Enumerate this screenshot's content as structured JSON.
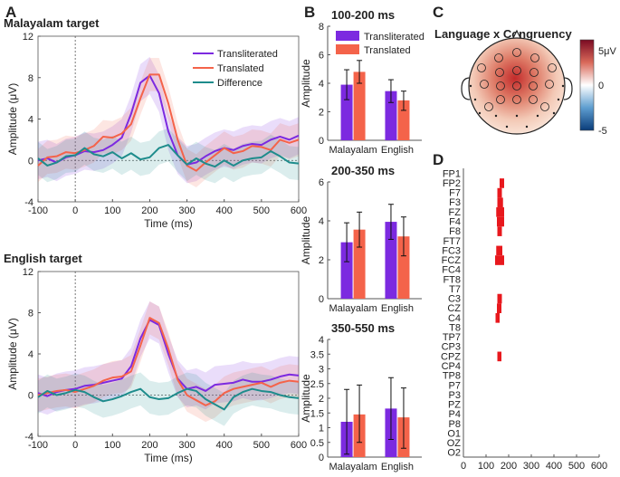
{
  "panel_labels": {
    "a": "A",
    "b": "B",
    "c": "C",
    "d": "D"
  },
  "colors": {
    "transliterated": "#7c2ae0",
    "translated": "#f4634a",
    "difference": "#1e8c8c"
  },
  "chart_data": [
    {
      "id": "malayalam",
      "type": "line",
      "title": "Malayalam target",
      "xlabel": "Time (ms)",
      "ylabel": "Amplitude (μV)",
      "xlim": [
        -100,
        600
      ],
      "ylim": [
        -4,
        12
      ],
      "xticks": [
        "-100",
        "0",
        "100",
        "200",
        "300",
        "400",
        "500",
        "600"
      ],
      "yticks": [
        "-4",
        "0",
        "4",
        "8",
        "12"
      ],
      "legend": [
        "Transliterated",
        "Translated",
        "Difference"
      ],
      "x": [
        -100,
        -75,
        -50,
        -25,
        0,
        25,
        50,
        75,
        100,
        125,
        150,
        175,
        200,
        225,
        250,
        275,
        300,
        325,
        350,
        375,
        400,
        425,
        450,
        475,
        500,
        525,
        550,
        575,
        600
      ],
      "series": [
        {
          "name": "Transliterated",
          "values": [
            0,
            0.2,
            -0.2,
            0.3,
            0.5,
            0.9,
            0.8,
            1.0,
            1.5,
            2.2,
            4.5,
            7.5,
            8.2,
            6.5,
            2.8,
            0.5,
            -0.4,
            -0.2,
            0.4,
            0.9,
            1.2,
            1.0,
            1.4,
            1.6,
            1.5,
            2.0,
            2.3,
            2.0,
            2.4
          ]
        },
        {
          "name": "Translated",
          "values": [
            -0.5,
            0.3,
            0.4,
            0.8,
            0.7,
            1.0,
            1.4,
            2.3,
            2.2,
            2.6,
            3.5,
            6.0,
            8.3,
            8.3,
            5.5,
            2.0,
            -0.5,
            -1.0,
            -0.2,
            0.5,
            1.2,
            0.7,
            0.9,
            1.4,
            1.3,
            1.0,
            2.0,
            1.7,
            2.0
          ]
        },
        {
          "name": "Difference",
          "values": [
            0.2,
            -0.5,
            -0.2,
            0.4,
            0.5,
            1.2,
            0.6,
            0.4,
            0.8,
            0.2,
            0.7,
            0.1,
            0.3,
            1.2,
            1.5,
            0.5,
            -0.4,
            0.2,
            -0.3,
            -0.6,
            0,
            -0.5,
            0,
            0.2,
            0.3,
            0.9,
            0.4,
            -0.2,
            -0.3
          ]
        }
      ]
    },
    {
      "id": "english",
      "type": "line",
      "title": "English target",
      "xlabel": "Time (ms)",
      "ylabel": "Amplitude (μV)",
      "xlim": [
        -100,
        600
      ],
      "ylim": [
        -4,
        12
      ],
      "xticks": [
        "-100",
        "0",
        "100",
        "200",
        "300",
        "400",
        "500",
        "600"
      ],
      "yticks": [
        "-4",
        "0",
        "4",
        "8",
        "12"
      ],
      "x": [
        -100,
        -75,
        -50,
        -25,
        0,
        25,
        50,
        75,
        100,
        125,
        150,
        175,
        200,
        225,
        250,
        275,
        300,
        325,
        350,
        375,
        400,
        425,
        450,
        475,
        500,
        525,
        550,
        575,
        600
      ],
      "series": [
        {
          "name": "Transliterated",
          "values": [
            0.2,
            -0.1,
            0.3,
            0.5,
            0.6,
            0.9,
            1.0,
            1.2,
            1.4,
            1.6,
            2.8,
            5.5,
            7.3,
            6.8,
            4.0,
            1.6,
            0.6,
            0.8,
            0.4,
            1.0,
            1.1,
            1.2,
            1.5,
            1.3,
            1.3,
            1.5,
            1.8,
            2.0,
            1.9
          ]
        },
        {
          "name": "Translated",
          "values": [
            0,
            0.2,
            0.4,
            0.5,
            0.3,
            0.6,
            0.9,
            1.4,
            1.7,
            1.8,
            2.3,
            4.8,
            7.5,
            7.0,
            4.5,
            1.5,
            0,
            -0.5,
            -1.0,
            -0.6,
            0.2,
            0.6,
            0.8,
            1.0,
            1.2,
            0.8,
            1.2,
            1.4,
            1.3
          ]
        },
        {
          "name": "Difference",
          "values": [
            -0.2,
            0.4,
            0,
            0.2,
            0.5,
            0.3,
            -0.2,
            -0.6,
            -0.4,
            -0.1,
            0.3,
            0.6,
            -0.2,
            -0.4,
            -0.3,
            0.2,
            0.6,
            0.4,
            -0.4,
            -0.9,
            -1.4,
            -0.2,
            0.3,
            0.6,
            0.4,
            0.3,
            0,
            -0.2,
            -0.3
          ]
        }
      ]
    },
    {
      "id": "bar1",
      "type": "bar",
      "title": "100-200 ms",
      "ylabel": "Amplitude",
      "categories": [
        "Malayalam",
        "English"
      ],
      "ylim": [
        0,
        8
      ],
      "yticks": [
        "0",
        "2",
        "4",
        "6",
        "8"
      ],
      "legend": [
        "Transliterated",
        "Translated"
      ],
      "series": [
        {
          "name": "Transliterated",
          "values": [
            3.9,
            3.45
          ],
          "err_low": [
            2.85,
            2.65
          ],
          "err_high": [
            4.95,
            4.25
          ]
        },
        {
          "name": "Translated",
          "values": [
            4.8,
            2.8
          ],
          "err_low": [
            4.0,
            2.1
          ],
          "err_high": [
            5.6,
            3.45
          ]
        }
      ]
    },
    {
      "id": "bar2",
      "type": "bar",
      "title": "200-350 ms",
      "ylabel": "Amplitude",
      "categories": [
        "Malayalam",
        "English"
      ],
      "ylim": [
        0,
        6
      ],
      "yticks": [
        "0",
        "2",
        "4",
        "6"
      ],
      "series": [
        {
          "name": "Transliterated",
          "values": [
            2.9,
            3.95
          ],
          "err_low": [
            1.9,
            3.05
          ],
          "err_high": [
            3.9,
            4.85
          ]
        },
        {
          "name": "Translated",
          "values": [
            3.55,
            3.2
          ],
          "err_low": [
            2.65,
            2.2
          ],
          "err_high": [
            4.45,
            4.2
          ]
        }
      ]
    },
    {
      "id": "bar3",
      "type": "bar",
      "title": "350-550 ms",
      "ylabel": "Amplitude",
      "categories": [
        "Malayalam",
        "English"
      ],
      "ylim": [
        0,
        4
      ],
      "yticks": [
        "0",
        "0.5",
        "1",
        "1.5",
        "2",
        "2.5",
        "3",
        "3.5",
        "4"
      ],
      "series": [
        {
          "name": "Transliterated",
          "values": [
            1.2,
            1.65
          ],
          "err_low": [
            0.1,
            0.6
          ],
          "err_high": [
            2.3,
            2.7
          ]
        },
        {
          "name": "Translated",
          "values": [
            1.45,
            1.35
          ],
          "err_low": [
            0.5,
            0.3
          ],
          "err_high": [
            2.45,
            2.35
          ]
        }
      ]
    },
    {
      "id": "topomap",
      "type": "heatmap",
      "title": "Language x Congruency",
      "colorbar": {
        "max_label": "5μV",
        "mid_label": "0",
        "min_label": "-5"
      }
    },
    {
      "id": "raster",
      "type": "heatmap",
      "xlim": [
        0,
        600
      ],
      "xticks": [
        "0",
        "100",
        "200",
        "300",
        "400",
        "500",
        "600"
      ],
      "channels": [
        "FP1",
        "FP2",
        "F7",
        "F3",
        "FZ",
        "F4",
        "F8",
        "FT7",
        "FC3",
        "FCZ",
        "FC4",
        "FT8",
        "T7",
        "C3",
        "CZ",
        "C4",
        "T8",
        "TP7",
        "CP3",
        "CPZ",
        "CP4",
        "TP8",
        "P7",
        "P3",
        "PZ",
        "P4",
        "P8",
        "O1",
        "OZ",
        "O2"
      ],
      "significant": [
        {
          "channel": "FP2",
          "start": 160,
          "end": 180
        },
        {
          "channel": "F7",
          "start": 150,
          "end": 170
        },
        {
          "channel": "F3",
          "start": 150,
          "end": 175
        },
        {
          "channel": "FZ",
          "start": 145,
          "end": 180
        },
        {
          "channel": "F4",
          "start": 148,
          "end": 180
        },
        {
          "channel": "F8",
          "start": 150,
          "end": 170
        },
        {
          "channel": "FC3",
          "start": 145,
          "end": 172
        },
        {
          "channel": "FCZ",
          "start": 140,
          "end": 180
        },
        {
          "channel": "C3",
          "start": 150,
          "end": 170
        },
        {
          "channel": "CZ",
          "start": 148,
          "end": 168
        },
        {
          "channel": "C4",
          "start": 142,
          "end": 160
        },
        {
          "channel": "CPZ",
          "start": 150,
          "end": 168
        }
      ]
    }
  ]
}
